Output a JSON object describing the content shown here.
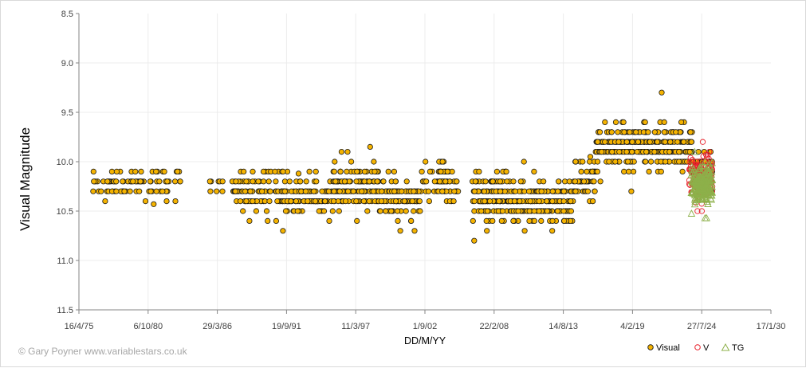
{
  "chart_data": {
    "type": "scatter",
    "title": "",
    "xlabel": "DD/M/YY",
    "ylabel": "Visual Magnitude",
    "x_tick_labels": [
      "16/4/75",
      "6/10/80",
      "29/3/86",
      "19/9/91",
      "11/3/97",
      "1/9/02",
      "22/2/08",
      "14/8/13",
      "4/2/19",
      "27/7/24",
      "17/1/30"
    ],
    "xlim": [
      "1975-04-16",
      "2030-01-17"
    ],
    "y_tick_labels": [
      "8.5",
      "9.0",
      "9.5",
      "10.0",
      "10.5",
      "11.0",
      "11.5"
    ],
    "ylim": [
      8.5,
      11.5
    ],
    "y_inverted": true,
    "grid": "vertical and horizontal major gridlines",
    "legend_position": "bottom-right",
    "credit": "© Gary Poyner www.variablestars.co.uk",
    "series": [
      {
        "name": "Visual",
        "marker": "circle",
        "fill": "#f5b300",
        "stroke": "#1a1a1a",
        "clusters": [
          {
            "from": "1976-06-01",
            "to": "1983-06-01",
            "center": 10.23,
            "spread": 0.08,
            "min": 10.1,
            "max": 10.43,
            "count": 90
          },
          {
            "from": "1985-06-01",
            "to": "1986-10-01",
            "center": 10.24,
            "spread": 0.04,
            "min": 10.2,
            "max": 10.3,
            "count": 8
          },
          {
            "from": "1987-06-01",
            "to": "1991-06-01",
            "center": 10.3,
            "spread": 0.1,
            "min": 10.1,
            "max": 10.6,
            "count": 90
          },
          {
            "from": "1991-06-01",
            "to": "1995-06-01",
            "center": 10.35,
            "spread": 0.08,
            "min": 10.12,
            "max": 10.7,
            "count": 110
          },
          {
            "from": "1995-06-01",
            "to": "1999-01-01",
            "center": 10.27,
            "spread": 0.12,
            "min": 9.85,
            "max": 10.6,
            "count": 140
          },
          {
            "from": "1999-01-01",
            "to": "2002-06-01",
            "center": 10.37,
            "spread": 0.1,
            "min": 10.1,
            "max": 10.7,
            "count": 110
          },
          {
            "from": "2002-06-01",
            "to": "2005-06-01",
            "center": 10.2,
            "spread": 0.1,
            "min": 10.0,
            "max": 10.4,
            "count": 70
          },
          {
            "from": "2006-06-01",
            "to": "2009-06-01",
            "center": 10.35,
            "spread": 0.12,
            "min": 10.1,
            "max": 10.8,
            "count": 130
          },
          {
            "from": "2009-06-01",
            "to": "2014-06-01",
            "center": 10.4,
            "spread": 0.1,
            "min": 10.0,
            "max": 10.7,
            "count": 180
          },
          {
            "from": "2014-06-01",
            "to": "2016-03-01",
            "center": 10.2,
            "spread": 0.1,
            "min": 9.95,
            "max": 10.4,
            "count": 50
          },
          {
            "from": "2016-03-01",
            "to": "2023-11-01",
            "center": 9.85,
            "spread": 0.1,
            "min": 9.3,
            "max": 10.3,
            "count": 300
          },
          {
            "from": "2023-11-01",
            "to": "2025-06-01",
            "center": 10.05,
            "spread": 0.08,
            "min": 9.9,
            "max": 10.3,
            "count": 50
          }
        ]
      },
      {
        "name": "V",
        "marker": "circle-open",
        "stroke": "#e8202a",
        "clusters": [
          {
            "from": "2023-08-01",
            "to": "2025-06-01",
            "center": 10.15,
            "spread": 0.1,
            "min": 9.8,
            "max": 10.5,
            "count": 160
          }
        ]
      },
      {
        "name": "TG",
        "marker": "triangle-open",
        "stroke": "#8db04a",
        "clusters": [
          {
            "from": "2023-10-01",
            "to": "2025-06-01",
            "center": 10.25,
            "spread": 0.1,
            "min": 9.9,
            "max": 10.57,
            "count": 200
          }
        ]
      }
    ]
  }
}
